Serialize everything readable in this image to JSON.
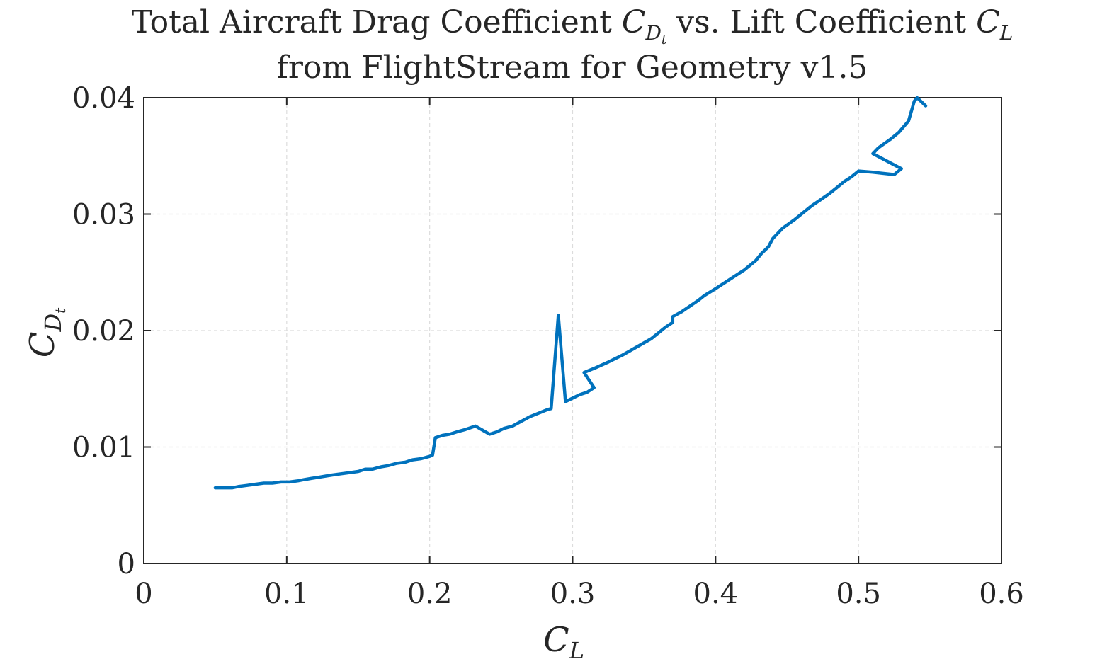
{
  "chart_data": {
    "type": "line",
    "title_line1_text": "Total Aircraft Drag Coefficient ",
    "title_line1_cd": "C",
    "title_line1_cd_sub": "D",
    "title_line1_cd_subsub": "t",
    "title_line1_mid": " vs. Lift Coefficient ",
    "title_line1_cl": "C",
    "title_line1_cl_sub": "L",
    "title_line2": "from FlightStream for Geometry v1.5",
    "xlabel": "C",
    "xlabel_sub": "L",
    "ylabel": "C",
    "ylabel_sub": "D",
    "ylabel_subsub": "t",
    "xlim": [
      0,
      0.6
    ],
    "ylim": [
      0,
      0.04
    ],
    "xticks": [
      0,
      0.1,
      0.2,
      0.3,
      0.4,
      0.5,
      0.6
    ],
    "xtick_labels": [
      "0",
      "0.1",
      "0.2",
      "0.3",
      "0.4",
      "0.5",
      "0.6"
    ],
    "yticks": [
      0,
      0.01,
      0.02,
      0.03,
      0.04
    ],
    "ytick_labels": [
      "0",
      "0.01",
      "0.02",
      "0.03",
      "0.04"
    ],
    "grid": true,
    "series_color": "#0072bd",
    "x": [
      0.05,
      0.058,
      0.062,
      0.066,
      0.072,
      0.078,
      0.084,
      0.09,
      0.096,
      0.102,
      0.108,
      0.112,
      0.117,
      0.122,
      0.127,
      0.132,
      0.138,
      0.144,
      0.15,
      0.155,
      0.16,
      0.166,
      0.171,
      0.177,
      0.183,
      0.188,
      0.194,
      0.2,
      0.202,
      0.204,
      0.209,
      0.214,
      0.219,
      0.225,
      0.232,
      0.242,
      0.247,
      0.252,
      0.258,
      0.264,
      0.27,
      0.276,
      0.282,
      0.285,
      0.29,
      0.295,
      0.305,
      0.31,
      0.315,
      0.308,
      0.316,
      0.325,
      0.335,
      0.345,
      0.355,
      0.365,
      0.37,
      0.37,
      0.376,
      0.382,
      0.388,
      0.392,
      0.4,
      0.41,
      0.42,
      0.428,
      0.432,
      0.437,
      0.44,
      0.447,
      0.455,
      0.46,
      0.467,
      0.473,
      0.48,
      0.485,
      0.49,
      0.495,
      0.5,
      0.51,
      0.525,
      0.53,
      0.51,
      0.514,
      0.522,
      0.528,
      0.535,
      0.539,
      0.541,
      0.547
    ],
    "y": [
      0.0065,
      0.0065,
      0.0065,
      0.0066,
      0.0067,
      0.0068,
      0.0069,
      0.0069,
      0.007,
      0.007,
      0.0071,
      0.0072,
      0.0073,
      0.0074,
      0.0075,
      0.0076,
      0.0077,
      0.0078,
      0.0079,
      0.0081,
      0.0081,
      0.0083,
      0.0084,
      0.0086,
      0.0087,
      0.0089,
      0.009,
      0.0092,
      0.0093,
      0.0108,
      0.011,
      0.0111,
      0.0113,
      0.0115,
      0.0118,
      0.0111,
      0.0113,
      0.0116,
      0.0118,
      0.0122,
      0.0126,
      0.0129,
      0.0132,
      0.0133,
      0.0213,
      0.0139,
      0.0145,
      0.0147,
      0.0151,
      0.0164,
      0.0168,
      0.0173,
      0.0179,
      0.0186,
      0.0193,
      0.0203,
      0.0207,
      0.0212,
      0.0216,
      0.0221,
      0.0226,
      0.023,
      0.0236,
      0.0244,
      0.0252,
      0.026,
      0.0266,
      0.0272,
      0.0279,
      0.0288,
      0.0295,
      0.03,
      0.0307,
      0.0312,
      0.0318,
      0.0323,
      0.0328,
      0.0332,
      0.0337,
      0.0336,
      0.0334,
      0.0339,
      0.0352,
      0.0357,
      0.0364,
      0.037,
      0.038,
      0.0397,
      0.04,
      0.0393
    ]
  }
}
